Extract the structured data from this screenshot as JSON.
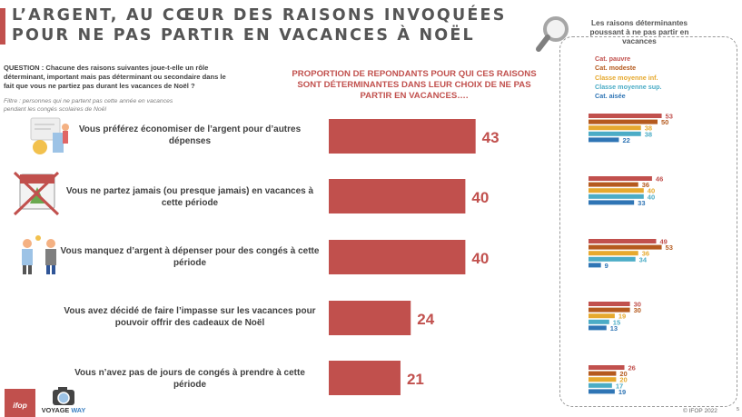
{
  "title": {
    "line1": "L’ARGENT, AU CŒUR DES RAISONS INVOQUÉES",
    "line2": "POUR NE PAS PARTIR EN VACANCES À NOËL"
  },
  "question": "QUESTION : Chacune des raisons suivantes joue-t-elle un rôle déterminant, important mais pas déterminant ou secondaire dans le fait que vous ne partiez pas durant les vacances de Noël ?",
  "filter": "Filtre : personnes qui ne partent pas cette année en vacances pendant les congés scolaires de Noël",
  "main_header": "PROPORTION DE REPONDANTS POUR QUI CES RAISONS SONT DÉTERMINANTES DANS LEUR CHOIX DE NE PAS PARTIR EN VACANCES….",
  "side_panel": {
    "title": "Les raisons déterminantes poussant à ne pas partir en vacances",
    "legend": [
      {
        "name": "Cat. pauvre",
        "color": "#c1504d"
      },
      {
        "name": "Cat. modeste",
        "color": "#b55a1e"
      },
      {
        "name": "Classe moyenne inf.",
        "color": "#e6a92e"
      },
      {
        "name": "Classe moyenne sup.",
        "color": "#4bacc6"
      },
      {
        "name": "Cat. aisée",
        "color": "#2f75b5"
      }
    ]
  },
  "colors": {
    "main_bar": "#c1504d",
    "value_text": "#c1504d"
  },
  "chart_data": [
    {
      "type": "bar",
      "orientation": "horizontal",
      "title": "PROPORTION DE REPONDANTS POUR QUI CES RAISONS SONT DÉTERMINANTES DANS LEUR CHOIX DE NE PAS PARTIR EN VACANCES….",
      "categories": [
        "Vous préférez économiser de l’argent pour d’autres dépenses",
        "Vous ne partez jamais (ou presque jamais) en vacances à cette période",
        "Vous manquez d’argent à dépenser pour des congés à cette période",
        "Vous avez décidé de faire l’impasse sur les vacances pour pouvoir offrir des cadeaux de Noël",
        "Vous n’avez pas de jours de congés à prendre à cette période"
      ],
      "values": [
        43,
        40,
        40,
        24,
        21
      ],
      "xlim": [
        0,
        100
      ]
    },
    {
      "type": "bar",
      "orientation": "horizontal",
      "title": "Les raisons déterminantes poussant à ne pas partir en vacances",
      "categories": [
        "Vous préférez économiser de l’argent pour d’autres dépenses",
        "Vous ne partez jamais (ou presque jamais) en vacances à cette période",
        "Vous manquez d’argent à dépenser pour des congés à cette période",
        "Vous avez décidé de faire l’impasse sur les vacances pour pouvoir offrir des cadeaux de Noël",
        "Vous n’avez pas de jours de congés à prendre à cette période"
      ],
      "series": [
        {
          "name": "Cat. pauvre",
          "values": [
            53,
            46,
            49,
            30,
            26
          ]
        },
        {
          "name": "Cat. modeste",
          "values": [
            50,
            36,
            53,
            30,
            20
          ]
        },
        {
          "name": "Classe moyenne inf.",
          "values": [
            38,
            40,
            36,
            19,
            20
          ]
        },
        {
          "name": "Classe moyenne sup.",
          "values": [
            38,
            40,
            34,
            15,
            17
          ]
        },
        {
          "name": "Cat. aisée",
          "values": [
            22,
            33,
            9,
            13,
            19
          ]
        }
      ],
      "legend": "top"
    }
  ],
  "logos": {
    "ifop": "ifop",
    "voyage_way_1": "VOYAGE",
    "voyage_way_2": "WAY"
  },
  "footer": {
    "copyright": "© IFOP 2022",
    "page": "5"
  }
}
